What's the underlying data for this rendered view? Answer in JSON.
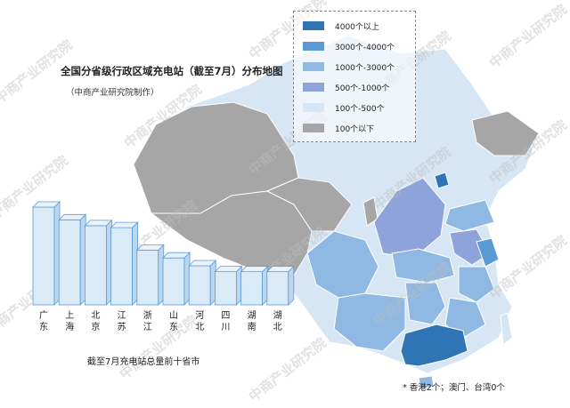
{
  "title": "全国分省级行政区域充电站（截至7月）分布地图",
  "subtitle": "（中商产业研究院制作）",
  "legend": {
    "items": [
      {
        "label": "4000个以上",
        "color": "#2f74b5"
      },
      {
        "label": "3000个-4000个",
        "color": "#5b9bd5"
      },
      {
        "label": "1000个-3000个",
        "color": "#8fb9e3"
      },
      {
        "label": "500个-1000个",
        "color": "#8ea3d9"
      },
      {
        "label": "100个-500个",
        "color": "#d6e6f5"
      },
      {
        "label": "100个以下",
        "color": "#a6a6a6"
      }
    ]
  },
  "chart_data": {
    "type": "bar",
    "categories": [
      "广东",
      "上海",
      "北京",
      "江苏",
      "浙江",
      "山东",
      "河北",
      "四川",
      "湖南",
      "湖北"
    ],
    "values": [
      100,
      87,
      81,
      79,
      56,
      48,
      40,
      34,
      34,
      34
    ],
    "title": "截至7月充电站总量前十省市",
    "ylim": [
      0,
      100
    ],
    "grid": false
  },
  "footnote": "* 香港2个；澳门、台湾0个",
  "watermark": "中商产业研究院",
  "colors": {
    "bar_face": "#dbeaf7",
    "bar_side": "#bcd6ee",
    "bar_top": "#eaf3fb",
    "bar_edge": "#5a9bd5"
  }
}
